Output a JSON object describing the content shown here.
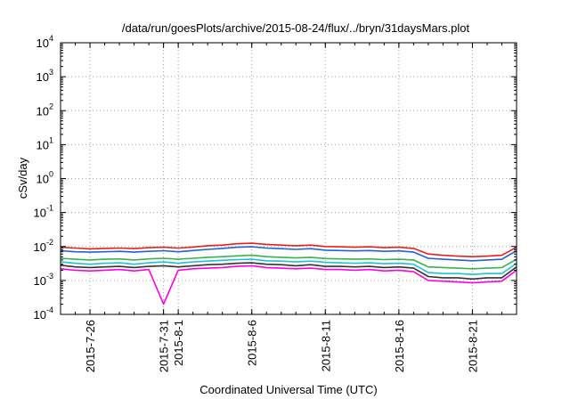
{
  "chart_data": {
    "type": "line",
    "title": "/data/run/goesPlots/archive/2015-08-24/flux/../bryn/31daysMars.plot",
    "xlabel": "Coordinated Universal Time (UTC)",
    "ylabel": "cSv/day",
    "yscale": "log",
    "ylim": [
      0.0001,
      10000
    ],
    "xlim": [
      "2015-07-24",
      "2015-08-24"
    ],
    "grid": true,
    "legend": "none",
    "x_ticks": [
      "2015-7-26",
      "2015-7-31",
      "2015-8-1",
      "2015-8-6",
      "2015-8-11",
      "2015-8-16",
      "2015-8-21"
    ],
    "y_ticks": [
      {
        "base": "10",
        "exp": "-4",
        "value": 0.0001
      },
      {
        "base": "10",
        "exp": "-3",
        "value": 0.001
      },
      {
        "base": "10",
        "exp": "-2",
        "value": 0.01
      },
      {
        "base": "10",
        "exp": "-1",
        "value": 0.1
      },
      {
        "base": "10",
        "exp": "0",
        "value": 1
      },
      {
        "base": "10",
        "exp": "1",
        "value": 10
      },
      {
        "base": "10",
        "exp": "2",
        "value": 100
      },
      {
        "base": "10",
        "exp": "3",
        "value": 1000
      },
      {
        "base": "10",
        "exp": "4",
        "value": 10000
      }
    ],
    "x": [
      "2015-07-24",
      "2015-07-25",
      "2015-07-26",
      "2015-07-27",
      "2015-07-28",
      "2015-07-29",
      "2015-07-30",
      "2015-07-31",
      "2015-08-01",
      "2015-08-02",
      "2015-08-03",
      "2015-08-04",
      "2015-08-05",
      "2015-08-06",
      "2015-08-07",
      "2015-08-08",
      "2015-08-09",
      "2015-08-10",
      "2015-08-11",
      "2015-08-12",
      "2015-08-13",
      "2015-08-14",
      "2015-08-15",
      "2015-08-16",
      "2015-08-17",
      "2015-08-18",
      "2015-08-19",
      "2015-08-20",
      "2015-08-21",
      "2015-08-22",
      "2015-08-23",
      "2015-08-24"
    ],
    "series": [
      {
        "color": "#e8211b",
        "values": [
          0.0095,
          0.009,
          0.0085,
          0.0088,
          0.009,
          0.0087,
          0.0092,
          0.0095,
          0.009,
          0.0096,
          0.0105,
          0.011,
          0.012,
          0.0125,
          0.0115,
          0.011,
          0.0105,
          0.011,
          0.01,
          0.0098,
          0.0095,
          0.0098,
          0.0092,
          0.0095,
          0.0088,
          0.006,
          0.0055,
          0.0052,
          0.005,
          0.0052,
          0.0055,
          0.0095
        ]
      },
      {
        "color": "#2461d8",
        "values": [
          0.0075,
          0.007,
          0.0068,
          0.007,
          0.0072,
          0.0068,
          0.0072,
          0.0075,
          0.007,
          0.0076,
          0.0082,
          0.0088,
          0.0095,
          0.0098,
          0.009,
          0.0086,
          0.0082,
          0.0086,
          0.0078,
          0.0076,
          0.0074,
          0.0076,
          0.0072,
          0.0074,
          0.0068,
          0.0045,
          0.0042,
          0.004,
          0.0038,
          0.004,
          0.0042,
          0.0075
        ]
      },
      {
        "color": "#3ab04f",
        "values": [
          0.0045,
          0.0042,
          0.004,
          0.0042,
          0.0043,
          0.004,
          0.0043,
          0.0045,
          0.0042,
          0.0045,
          0.0048,
          0.005,
          0.0053,
          0.0055,
          0.005,
          0.0048,
          0.0046,
          0.0048,
          0.0044,
          0.0043,
          0.0042,
          0.0043,
          0.0041,
          0.0042,
          0.004,
          0.0025,
          0.0024,
          0.0023,
          0.0022,
          0.0023,
          0.0024,
          0.0042
        ]
      },
      {
        "color": "#1fc1d6",
        "values": [
          0.0035,
          0.0032,
          0.003,
          0.0032,
          0.0033,
          0.003,
          0.0033,
          0.0035,
          0.0032,
          0.0035,
          0.0037,
          0.0039,
          0.0041,
          0.0042,
          0.0038,
          0.0037,
          0.0035,
          0.0037,
          0.0034,
          0.0033,
          0.0032,
          0.0033,
          0.0031,
          0.0032,
          0.003,
          0.0017,
          0.0016,
          0.0016,
          0.0015,
          0.0016,
          0.0016,
          0.0032
        ]
      },
      {
        "color": "#333333",
        "values": [
          0.0028,
          0.0025,
          0.0024,
          0.0025,
          0.0026,
          0.0024,
          0.0026,
          0.0027,
          0.0025,
          0.0027,
          0.0029,
          0.003,
          0.0032,
          0.0033,
          0.003,
          0.0029,
          0.0027,
          0.0029,
          0.0026,
          0.0026,
          0.0025,
          0.0026,
          0.0024,
          0.0025,
          0.0023,
          0.0013,
          0.0012,
          0.0012,
          0.0011,
          0.0012,
          0.0012,
          0.0025
        ]
      },
      {
        "color": "#ff00e6",
        "values": [
          0.0022,
          0.002,
          0.0019,
          0.002,
          0.0021,
          0.0019,
          0.0021,
          0.0002,
          0.002,
          0.0022,
          0.0023,
          0.0024,
          0.0026,
          0.0027,
          0.0024,
          0.0023,
          0.0022,
          0.0023,
          0.0021,
          0.0021,
          0.002,
          0.0021,
          0.0019,
          0.002,
          0.0018,
          0.001,
          0.00095,
          0.0009,
          0.00085,
          0.0009,
          0.00095,
          0.002
        ]
      }
    ]
  }
}
